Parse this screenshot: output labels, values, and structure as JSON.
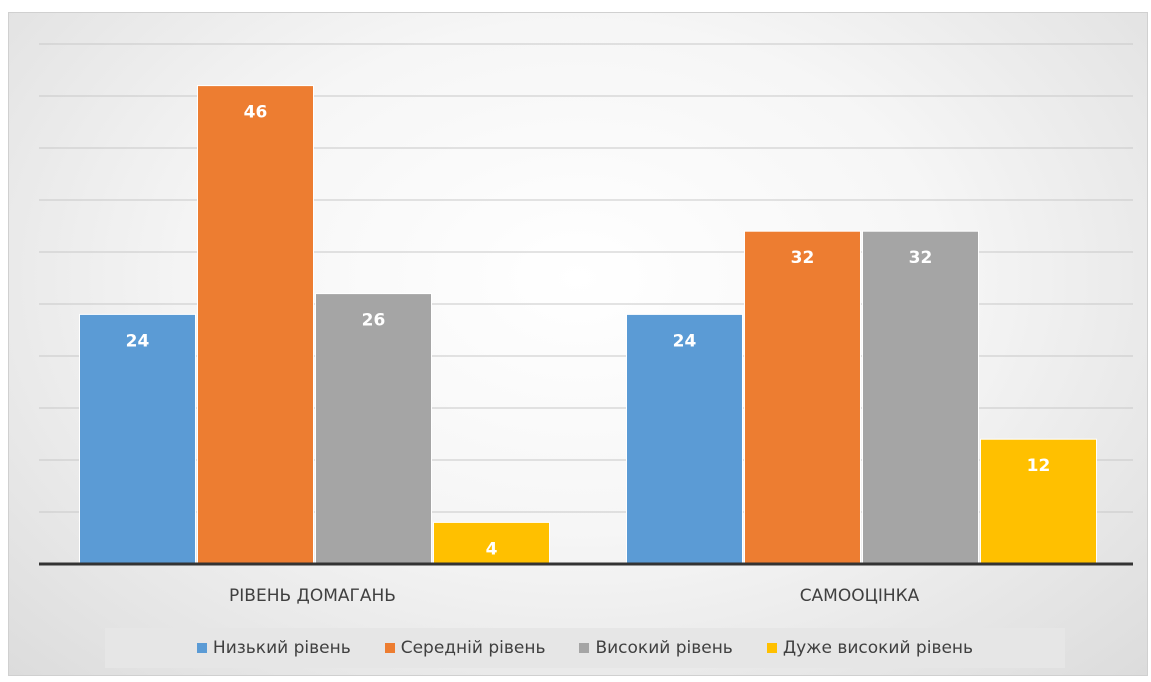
{
  "chart_data": {
    "type": "bar",
    "title": "",
    "xlabel": "",
    "ylabel": "",
    "categories": [
      "РІВЕНЬ ДОМАГАНЬ",
      "САМООЦІНКА"
    ],
    "series": [
      {
        "name": "Низький рівень",
        "values": [
          24,
          24
        ],
        "color": "#5b9bd5"
      },
      {
        "name": "Середній рівень",
        "values": [
          46,
          32
        ],
        "color": "#ed7d31"
      },
      {
        "name": "Високий рівень",
        "values": [
          26,
          32
        ],
        "color": "#a5a5a5"
      },
      {
        "name": "Дуже високий рівень",
        "values": [
          4,
          12
        ],
        "color": "#ffc000"
      }
    ],
    "ylim": [
      0,
      50
    ],
    "grid": true,
    "data_labels": true,
    "legend_position": "bottom"
  }
}
